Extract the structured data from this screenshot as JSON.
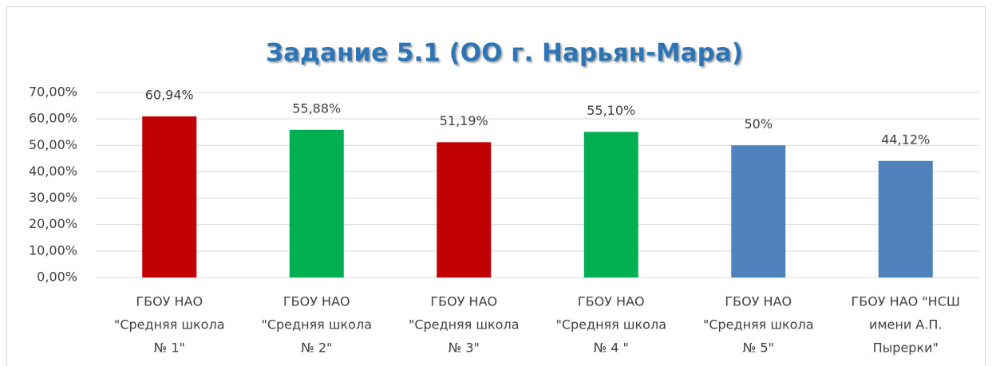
{
  "chart_data": {
    "type": "bar",
    "title": "Задание 5.1 (ОО г. Нарьян-Мара)",
    "categories": [
      [
        "ГБОУ НАО",
        "\"Средняя школа",
        "№ 1\""
      ],
      [
        "ГБОУ НАО",
        "\"Средняя школа",
        "№ 2\""
      ],
      [
        "ГБОУ НАО",
        "\"Средняя школа",
        "№ 3\""
      ],
      [
        "ГБОУ НАО",
        "\"Средняя школа",
        "№ 4 \""
      ],
      [
        "ГБОУ НАО",
        "\"Средняя школа",
        "№ 5\""
      ],
      [
        "ГБОУ НАО \"НСШ",
        "имени А.П.",
        "Пырерки\""
      ]
    ],
    "values": [
      60.94,
      55.88,
      51.19,
      55.1,
      50,
      44.12
    ],
    "value_labels": [
      "60,94%",
      "55,88%",
      "51,19%",
      "55,10%",
      "50%",
      "44,12%"
    ],
    "colors": [
      "#c00000",
      "#00b050",
      "#c00000",
      "#00b050",
      "#4f81bd",
      "#4f81bd"
    ],
    "ylim": [
      0,
      70
    ],
    "yticks": [
      {
        "value": 0,
        "label": "0,00%"
      },
      {
        "value": 10,
        "label": "10,00%"
      },
      {
        "value": 20,
        "label": "20,00%"
      },
      {
        "value": 30,
        "label": "30,00%"
      },
      {
        "value": 40,
        "label": "40,00%"
      },
      {
        "value": 50,
        "label": "50,00%"
      },
      {
        "value": 60,
        "label": "60,00%"
      },
      {
        "value": 70,
        "label": "70,00%"
      }
    ],
    "grid": true
  }
}
